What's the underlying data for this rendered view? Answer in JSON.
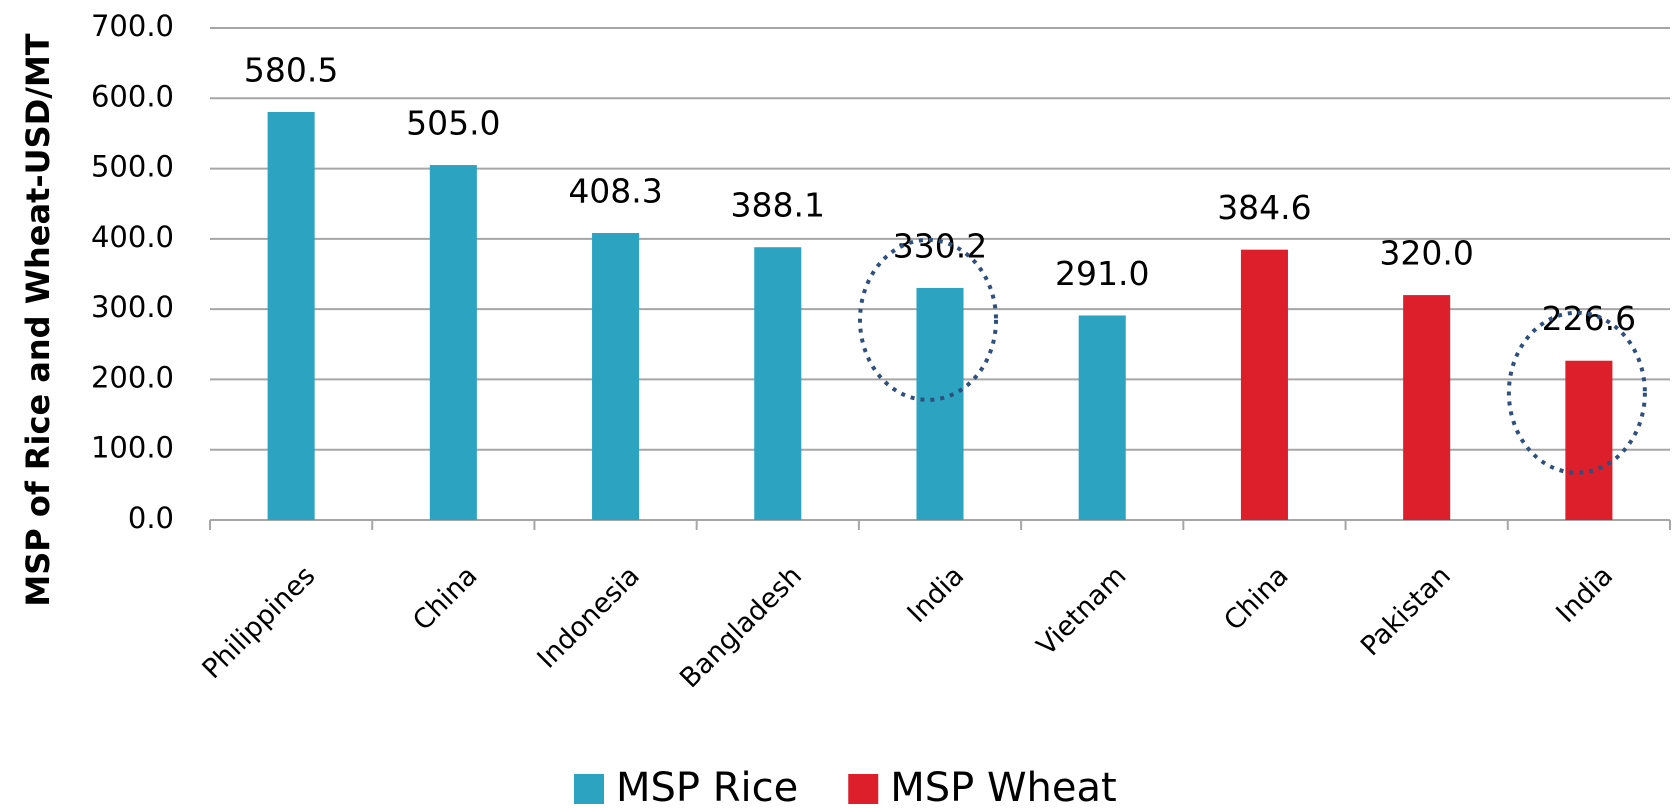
{
  "chart_data": {
    "type": "bar",
    "y_label": "MSP of Rice and Wheat-USD/MT",
    "categories": [
      "Philippines",
      "China",
      "Indonesia",
      "Bangladesh",
      "India",
      "Vietnam",
      "China",
      "Pakistan",
      "India"
    ],
    "series": [
      {
        "name": "MSP Rice",
        "color": "#2ca3c0",
        "values": [
          580.5,
          505,
          408.3,
          388.1,
          330.2,
          291,
          null,
          null,
          null
        ],
        "value_labels": [
          "580.5",
          "505.0",
          "408.3",
          "388.1",
          "330.2",
          "291.0",
          null,
          null,
          null
        ]
      },
      {
        "name": "MSP Wheat",
        "color": "#dc1f2a",
        "values": [
          null,
          null,
          null,
          null,
          null,
          null,
          384.6,
          320,
          226.6
        ],
        "value_labels": [
          null,
          null,
          null,
          null,
          null,
          null,
          "384.6",
          "320.0",
          "226.6"
        ]
      }
    ],
    "ylim": [
      0,
      700
    ],
    "yticks": [
      {
        "value": 0,
        "label": "0.0"
      },
      {
        "value": 100,
        "label": "100.0"
      },
      {
        "value": 200,
        "label": "200.0"
      },
      {
        "value": 300,
        "label": "300.0"
      },
      {
        "value": 400,
        "label": "400.0"
      },
      {
        "value": 500,
        "label": "500.0"
      },
      {
        "value": 600,
        "label": "600.0"
      },
      {
        "value": 700,
        "label": "700.0"
      }
    ],
    "grid": true,
    "legend": "bottom"
  }
}
